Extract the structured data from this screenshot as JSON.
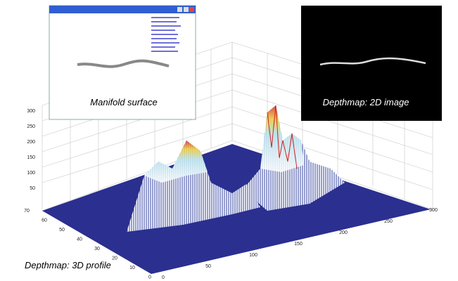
{
  "manifold_window": {
    "caption": "Manifold surface"
  },
  "depthmap_2d": {
    "caption": "Depthmap: 2D image"
  },
  "profile_3d": {
    "caption": "Depthmap: 3D profile",
    "z_ticks": [
      "300",
      "250",
      "200",
      "150",
      "100",
      "50"
    ],
    "y_ticks": [
      "70",
      "60",
      "50",
      "40",
      "30",
      "20",
      "10",
      "0"
    ],
    "x_ticks": [
      "0",
      "50",
      "100",
      "150",
      "200",
      "250",
      "300"
    ]
  }
}
